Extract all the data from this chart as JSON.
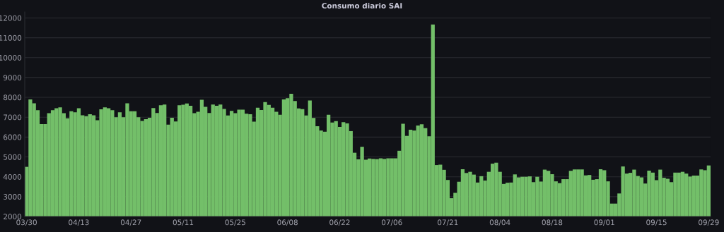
{
  "chart_data": {
    "type": "bar",
    "title": "Consumo diario SAI",
    "categories": [
      "03/30",
      null,
      null,
      null,
      null,
      null,
      null,
      null,
      null,
      null,
      null,
      null,
      null,
      null,
      "04/13",
      null,
      null,
      null,
      null,
      null,
      null,
      null,
      null,
      null,
      null,
      null,
      null,
      null,
      "04/27",
      null,
      null,
      null,
      null,
      null,
      null,
      null,
      null,
      null,
      null,
      null,
      null,
      null,
      "05/11",
      null,
      null,
      null,
      null,
      null,
      null,
      null,
      null,
      null,
      null,
      null,
      null,
      null,
      "05/25",
      null,
      null,
      null,
      null,
      null,
      null,
      null,
      null,
      null,
      null,
      null,
      null,
      null,
      "06/08",
      null,
      null,
      null,
      null,
      null,
      null,
      null,
      null,
      null,
      null,
      null,
      null,
      null,
      "06/22",
      null,
      null,
      null,
      null,
      null,
      null,
      null,
      null,
      null,
      null,
      null,
      null,
      null,
      "07/06",
      null,
      null,
      null,
      null,
      null,
      null,
      null,
      null,
      null,
      null,
      null,
      null,
      null,
      null,
      "07/21",
      null,
      null,
      null,
      null,
      null,
      null,
      null,
      null,
      null,
      null,
      null,
      null,
      null,
      "08/04",
      null,
      null,
      null,
      null,
      null,
      null,
      null,
      null,
      null,
      null,
      null,
      null,
      null,
      "08/18",
      null,
      null,
      null,
      null,
      null,
      null,
      null,
      null,
      null,
      null,
      null,
      null,
      null,
      "09/01",
      null,
      null,
      null,
      null,
      null,
      null,
      null,
      null,
      null,
      null,
      null,
      null,
      null,
      "09/15",
      null,
      null,
      null,
      null,
      null,
      null,
      null,
      null,
      null,
      null,
      null,
      null,
      null,
      "09/29"
    ],
    "values": [
      4500,
      7900,
      7700,
      7350,
      6650,
      6650,
      7200,
      7350,
      7450,
      7500,
      7200,
      6950,
      7300,
      7250,
      7450,
      7100,
      7050,
      7150,
      7100,
      6850,
      7400,
      7500,
      7450,
      7350,
      7000,
      7250,
      7000,
      7700,
      7300,
      7300,
      7000,
      6810,
      6900,
      6970,
      7460,
      7210,
      7600,
      7640,
      6630,
      6970,
      6790,
      7600,
      7630,
      7690,
      7580,
      7200,
      7270,
      7880,
      7520,
      7210,
      7640,
      7580,
      7640,
      7420,
      7090,
      7320,
      7200,
      7380,
      7380,
      7180,
      7150,
      6780,
      7480,
      7360,
      7760,
      7620,
      7480,
      7270,
      7120,
      7900,
      7960,
      8180,
      7820,
      7440,
      7410,
      7090,
      7840,
      6960,
      6550,
      6330,
      6270,
      7120,
      6730,
      6800,
      6510,
      6750,
      6690,
      6300,
      5210,
      4880,
      5510,
      4860,
      4920,
      4900,
      4890,
      4930,
      4900,
      4930,
      4930,
      4930,
      5310,
      6670,
      6060,
      6370,
      6330,
      6580,
      6640,
      6450,
      6040,
      11670,
      4590,
      4610,
      4350,
      3840,
      2920,
      3190,
      3750,
      4380,
      4190,
      4250,
      4110,
      3710,
      4030,
      3810,
      4250,
      4660,
      4710,
      4250,
      3640,
      3700,
      3710,
      4120,
      3970,
      4000,
      4000,
      4020,
      3730,
      4000,
      3760,
      4360,
      4300,
      4130,
      3770,
      3680,
      3880,
      3880,
      4300,
      4370,
      4370,
      4370,
      4070,
      4090,
      3850,
      3880,
      4380,
      4330,
      3770,
      2650,
      2650,
      3160,
      4520,
      4160,
      4200,
      4360,
      4040,
      3970,
      3660,
      4310,
      4210,
      3830,
      4360,
      3950,
      3900,
      3730,
      4210,
      4210,
      4250,
      4160,
      4010,
      4060,
      4060,
      4370,
      4330,
      4570
    ],
    "color": "#73bf69",
    "ylim": [
      2000,
      12300
    ],
    "yticks": [
      2000,
      3000,
      4000,
      5000,
      6000,
      7000,
      8000,
      9000,
      10000,
      11000,
      12000
    ],
    "grid": "y"
  }
}
